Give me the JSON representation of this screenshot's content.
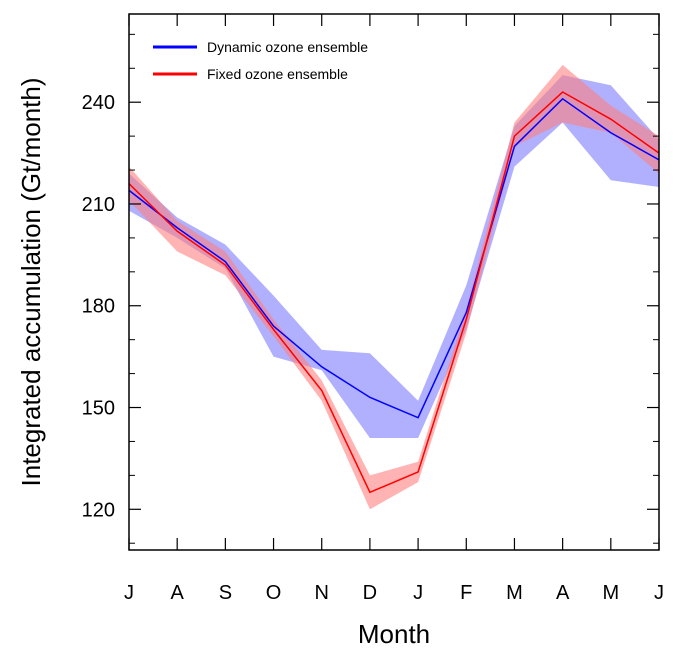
{
  "chart_data": {
    "type": "line",
    "title": "",
    "xlabel": "Month",
    "ylabel": "Integrated accumulation (Gt/month)",
    "categories": [
      "J",
      "A",
      "S",
      "O",
      "N",
      "D",
      "J",
      "F",
      "M",
      "A",
      "M",
      "J"
    ],
    "ylim": [
      108,
      266
    ],
    "yticks": [
      120,
      150,
      180,
      210,
      240
    ],
    "grid": false,
    "legend_position": "top-left",
    "series": [
      {
        "name": "Dynamic ozone ensemble",
        "color": "#0000ff",
        "band_color": "#7b7bff",
        "values": [
          214,
          203,
          193,
          174,
          162,
          153,
          147,
          178,
          227,
          241,
          231,
          223
        ],
        "upper": [
          219,
          206,
          198,
          183,
          167,
          166,
          152,
          186,
          233,
          248,
          245,
          229
        ],
        "lower": [
          208,
          200,
          191,
          165,
          161,
          141,
          141,
          173,
          221,
          234,
          217,
          215
        ]
      },
      {
        "name": "Fixed ozone ensemble",
        "color": "#ff0000",
        "band_color": "#ff8080",
        "values": [
          216,
          202,
          192,
          173,
          155,
          125,
          131,
          176,
          230,
          243,
          235,
          225
        ],
        "upper": [
          221,
          205,
          196,
          176,
          158,
          130,
          134,
          179,
          234,
          251,
          239,
          230
        ],
        "lower": [
          211,
          196,
          189,
          171,
          152,
          120,
          128,
          172,
          227,
          234,
          231,
          219
        ]
      }
    ]
  }
}
